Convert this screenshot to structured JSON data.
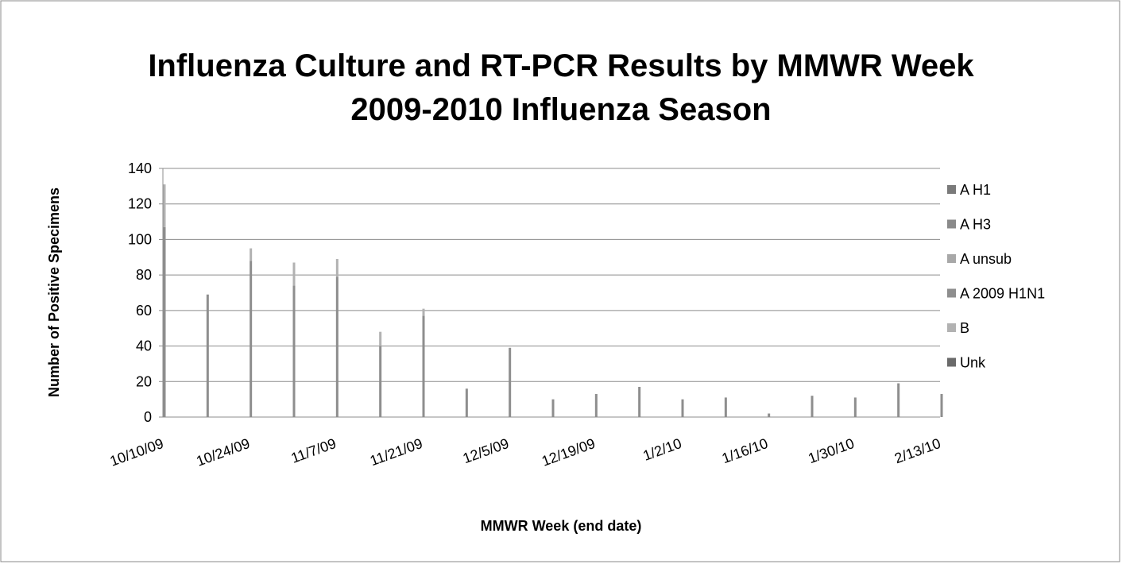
{
  "chart_data": {
    "type": "bar",
    "stacked": true,
    "title": "Influenza Culture and RT-PCR Results by MMWR Week",
    "subtitle": "2009-2010 Influenza Season",
    "x_label": "MMWR Week (end date)",
    "y_label": "Number of  Positive Specimens",
    "categories": [
      "10/10/09",
      null,
      "10/24/09",
      null,
      "11/7/09",
      null,
      "11/21/09",
      null,
      "12/5/09",
      null,
      "12/19/09",
      null,
      "1/2/10",
      null,
      "1/16/10",
      null,
      "1/30/10",
      null,
      "2/13/10"
    ],
    "series": [
      {
        "name": "A H1",
        "color": "#7a7a7a",
        "values": [
          0,
          0,
          0,
          0,
          0,
          0,
          0,
          0,
          0,
          0,
          0,
          0,
          0,
          0,
          0,
          0,
          0,
          0,
          0
        ]
      },
      {
        "name": "A H3",
        "color": "#8a8a8a",
        "values": [
          0,
          0,
          0,
          0,
          0,
          0,
          0,
          0,
          0,
          0,
          0,
          0,
          0,
          0,
          0,
          0,
          0,
          0,
          0
        ]
      },
      {
        "name": "A unsub",
        "color": "#a8a8a8",
        "values": [
          0,
          0,
          0,
          0,
          0,
          0,
          0,
          0,
          0,
          0,
          0,
          0,
          0,
          0,
          0,
          0,
          0,
          0,
          0
        ]
      },
      {
        "name": "A 2009 H1N1",
        "color": "#8e8e8e",
        "values": [
          107,
          69,
          88,
          74,
          79,
          40,
          57,
          16,
          39,
          10,
          13,
          17,
          10,
          11,
          2,
          12,
          11,
          19,
          13
        ]
      },
      {
        "name": "B",
        "color": "#b2b2b2",
        "values": [
          24,
          0,
          7,
          13,
          10,
          8,
          4,
          0,
          0,
          0,
          0,
          0,
          0,
          0,
          0,
          0,
          0,
          0,
          0
        ]
      },
      {
        "name": "Unk",
        "color": "#6a6a6a",
        "values": [
          0,
          0,
          0,
          0,
          0,
          0,
          0,
          0,
          0,
          0,
          0,
          0,
          0,
          0,
          0,
          0,
          0,
          0,
          0
        ]
      }
    ],
    "ylim": [
      0,
      140
    ],
    "yticks": [
      0,
      20,
      40,
      60,
      80,
      100,
      120,
      140
    ],
    "grid": true,
    "legend": "right"
  }
}
